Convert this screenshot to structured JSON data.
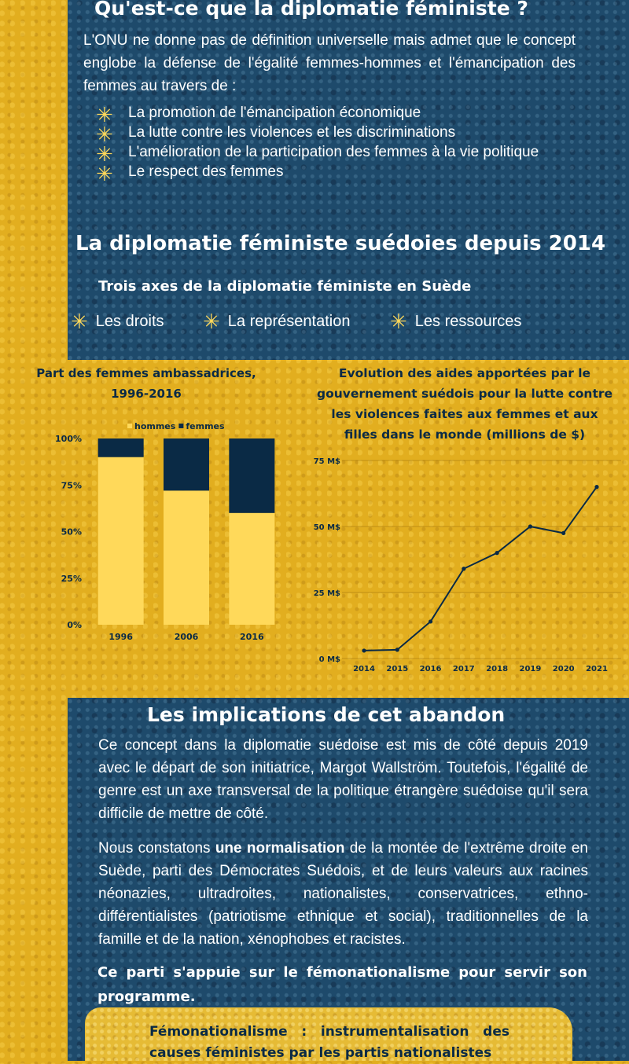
{
  "section1": {
    "title": "Qu'est-ce que la diplomatie féministe ?",
    "intro": "L'ONU ne donne pas de définition universelle mais admet que le concept englobe la défense de l'égalité femmes-hommes et l'émancipation des femmes au travers de :",
    "items": [
      "La promotion de l'émancipation économique",
      "La lutte contre les violences et les discriminations",
      "L'amélioration de la participation des femmes à la vie politique",
      "Le respect des femmes"
    ]
  },
  "section2": {
    "title": "La diplomatie féministe suédoies depuis 2014",
    "subtitle": "Trois axes de la diplomatie féministe en Suède",
    "axes": [
      "Les droits",
      "La représentation",
      "Les ressources"
    ]
  },
  "chart_data": [
    {
      "type": "bar",
      "stacked": true,
      "title": "Part des femmes ambassadrices, 1996-2016",
      "categories": [
        "1996",
        "2006",
        "2016"
      ],
      "series": [
        {
          "name": "hommes",
          "values": [
            90,
            72,
            60
          ],
          "color": "#ffd95a"
        },
        {
          "name": "femmes",
          "values": [
            10,
            28,
            40
          ],
          "color": "#0a2a45"
        }
      ],
      "ylim": [
        0,
        100
      ],
      "yticks": [
        "0%",
        "25%",
        "50%",
        "75%",
        "100%"
      ],
      "legend": "top"
    },
    {
      "type": "line",
      "title": "Evolution des aides apportées par le gouvernement suédois pour la lutte contre les violences faites aux femmes et aux filles dans le monde (millions de $)",
      "x": [
        "2014",
        "2015",
        "2016",
        "2017",
        "2018",
        "2019",
        "2020",
        "2021"
      ],
      "values": [
        3,
        3.3,
        14,
        34,
        40,
        50,
        47.5,
        65
      ],
      "ylim": [
        0,
        75
      ],
      "yticks": [
        "0 M$",
        "25 M$",
        "50 M$",
        "75 M$"
      ],
      "line_color": "#0a2a45",
      "grid": true
    }
  ],
  "section3": {
    "title": "Les implications de cet abandon",
    "p1": "Ce concept dans la diplomatie suédoise est mis de côté depuis 2019 avec le départ de son initiatrice, Margot Wallström. Toutefois, l'égalité de genre est un axe transversal de la politique étrangère suédoise qu'il sera difficile de mettre de côté.",
    "p2_before": "Nous constatons ",
    "p2_bold": "une normalisation",
    "p2_after": " de la montée de l'extrême droite en Suède, parti des Démocrates Suédois, et de leurs valeurs aux racines néonazies, ultradroites, nationalistes, conservatrices, ethno-différentialistes (patriotisme ethnique et social), traditionnelles de la famille et de la nation, xénophobes et racistes.",
    "p3": "Ce parti s'appuie sur le fémonationalisme pour servir son programme.",
    "definition": "Fémonationalisme : instrumentalisation des causes féministes par les partis nationalistes"
  },
  "colors": {
    "navy": "#1e4a6b",
    "gold": "#e2ae1f",
    "accent_yellow": "#ffd95a",
    "dark_navy": "#0a2a45"
  }
}
